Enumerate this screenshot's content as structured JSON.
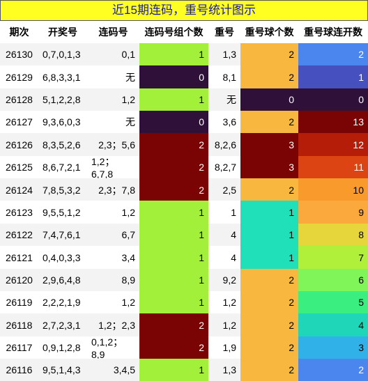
{
  "title": "近15期连码，重号统计图示",
  "table": {
    "header": [
      "期次",
      "开奖号",
      "连码号",
      "连码号组个数",
      "重号",
      "重号球个数",
      "重号球连开数"
    ],
    "rows": [
      [
        26130,
        "0,7,0,1,3",
        "0,1",
        1,
        "1,3",
        2,
        2
      ],
      [
        26129,
        "6,8,3,3,1",
        "无",
        0,
        "8,1",
        2,
        1
      ],
      [
        26128,
        "5,1,2,2,8",
        "1,2",
        1,
        "无",
        0,
        0
      ],
      [
        26127,
        "9,3,6,0,3",
        "无",
        0,
        "3,6",
        2,
        13
      ],
      [
        26126,
        "8,3,5,2,6",
        "2,3；5,6",
        2,
        "8,2,6",
        3,
        12
      ],
      [
        26125,
        "8,6,7,2,1",
        "1,2；6,7,8",
        2,
        "8,2,7",
        3,
        11
      ],
      [
        26124,
        "7,8,5,3,2",
        "2,3；7,8",
        2,
        "2,5",
        2,
        10
      ],
      [
        26123,
        "9,5,5,1,2",
        "1,2",
        1,
        "1",
        1,
        9
      ],
      [
        26122,
        "7,4,7,6,1",
        "6,7",
        1,
        "4",
        1,
        8
      ],
      [
        26121,
        "0,4,0,3,3",
        "3,4",
        1,
        "4",
        1,
        7
      ],
      [
        26120,
        "2,9,6,4,8",
        "8,9",
        1,
        "9,2",
        2,
        6
      ],
      [
        26119,
        "2,2,2,1,9",
        "1,2",
        1,
        "1,2",
        2,
        5
      ],
      [
        26118,
        "2,7,2,3,1",
        "1,2；2,3",
        2,
        "1,2",
        2,
        4
      ],
      [
        26117,
        "0,9,1,2,8",
        "0,1,2；8,9",
        2,
        "1,9",
        2,
        3
      ],
      [
        26116,
        "9,5,1,4,3",
        "3,4,5",
        1,
        "1,3",
        2,
        2
      ]
    ],
    "cell_colors": [
      [
        "#a3f03a",
        "#f8b840",
        "#4a86ee"
      ],
      [
        "#2e1039",
        "#f8b840",
        "#4650bf"
      ],
      [
        "#a3f03a",
        "#2e1039",
        "#2e1039"
      ],
      [
        "#2e1039",
        "#f8b840",
        "#7a0403"
      ],
      [
        "#7a0403",
        "#7a0403",
        "#b51d08"
      ],
      [
        "#7a0403",
        "#7a0403",
        "#dc4414"
      ],
      [
        "#7a0403",
        "#f8b840",
        "#f99a2c"
      ],
      [
        "#a3f03a",
        "#1fe0b8",
        "#fba83c"
      ],
      [
        "#a3f03a",
        "#1fe0b8",
        "#e6d63c"
      ],
      [
        "#a3f03a",
        "#1fe0b8",
        "#b0f03a"
      ],
      [
        "#a3f03a",
        "#f8b840",
        "#7ff55a"
      ],
      [
        "#a3f03a",
        "#f8b840",
        "#3aef80"
      ],
      [
        "#7a0403",
        "#f8b840",
        "#1fd6b8"
      ],
      [
        "#7a0403",
        "#f8b840",
        "#30b2e8"
      ],
      [
        "#a3f03a",
        "#f8b840",
        "#4a86ee"
      ]
    ]
  }
}
